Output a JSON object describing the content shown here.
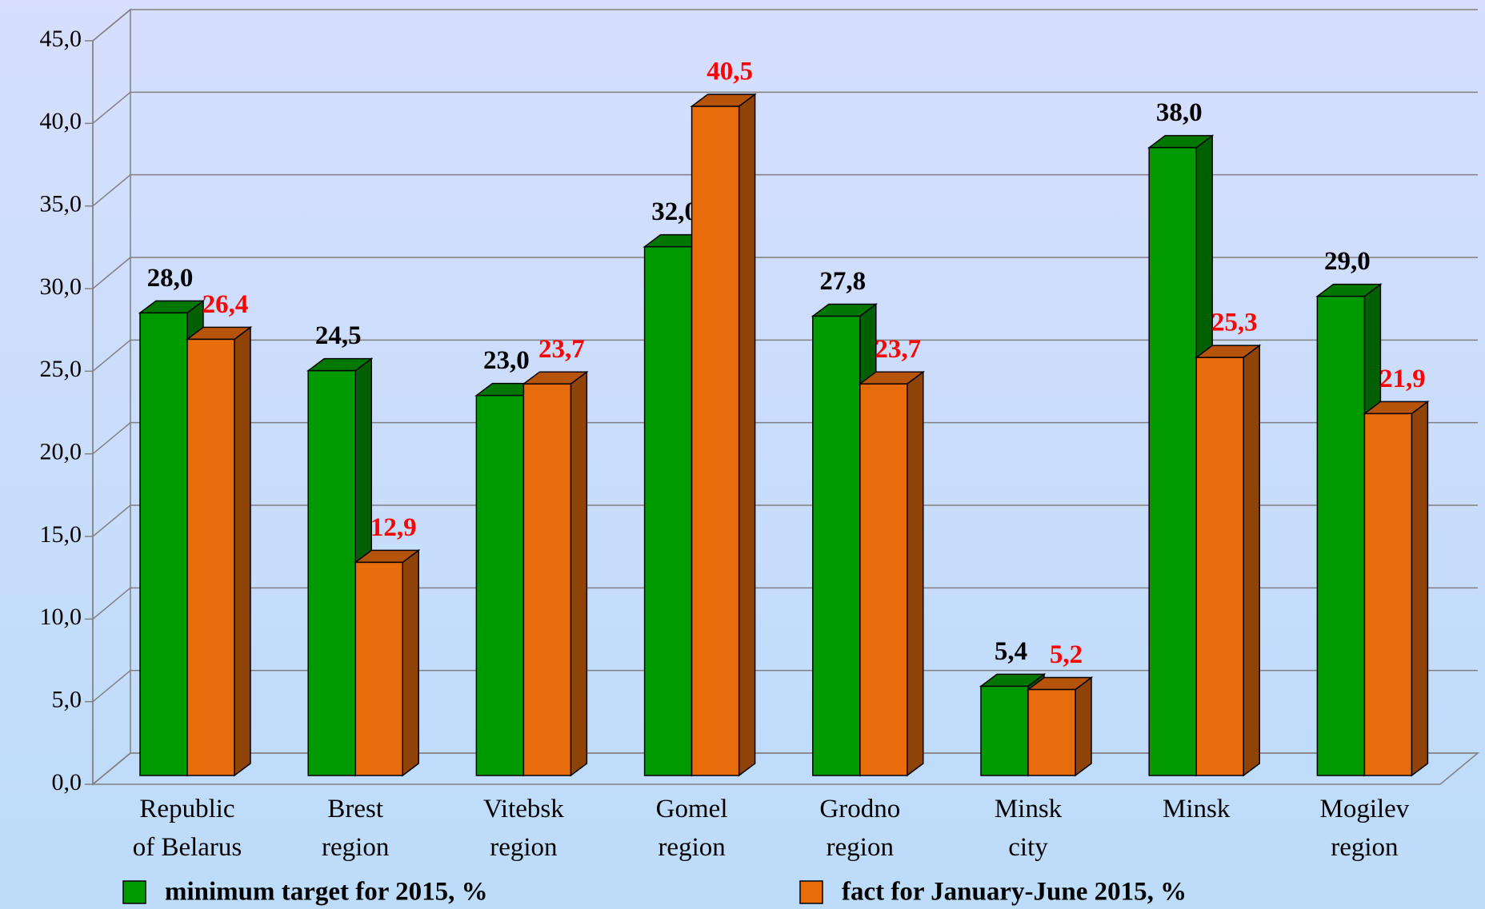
{
  "chart_data": {
    "type": "bar3d",
    "categories": [
      "Republic\nof Belarus",
      "Brest\nregion",
      "Vitebsk\nregion",
      "Gomel\nregion",
      "Grodno\nregion",
      "Minsk\ncity",
      "Minsk",
      "Mogilev\nregion"
    ],
    "series": [
      {
        "name": "minimum target for 2015, %",
        "color": "#009900",
        "label_color": "#000000",
        "values": [
          28.0,
          24.5,
          23.0,
          32.0,
          27.8,
          5.4,
          38.0,
          29.0
        ],
        "value_labels": [
          "28,0",
          "24,5",
          "23,0",
          "32,0",
          "27,8",
          "5,4",
          "38,0",
          "29,0"
        ]
      },
      {
        "name": "fact for January-June 2015, %",
        "color": "#e86c0c",
        "label_color": "#ff0000",
        "values": [
          26.4,
          12.9,
          23.7,
          40.5,
          23.7,
          5.2,
          25.3,
          21.9
        ],
        "value_labels": [
          "26,4",
          "12,9",
          "23,7",
          "40,5",
          "23,7",
          "5,2",
          "25,3",
          "21,9"
        ]
      }
    ],
    "ylim": [
      0,
      45
    ],
    "yticks": [
      {
        "value": 0,
        "label": "0,0"
      },
      {
        "value": 5,
        "label": "5,0"
      },
      {
        "value": 10,
        "label": "10,0"
      },
      {
        "value": 15,
        "label": "15,0"
      },
      {
        "value": 20,
        "label": "20,0"
      },
      {
        "value": 25,
        "label": "25,0"
      },
      {
        "value": 30,
        "label": "30,0"
      },
      {
        "value": 35,
        "label": "35,0"
      },
      {
        "value": 40,
        "label": "40,0"
      },
      {
        "value": 45,
        "label": "45,0"
      }
    ],
    "grid": true
  }
}
